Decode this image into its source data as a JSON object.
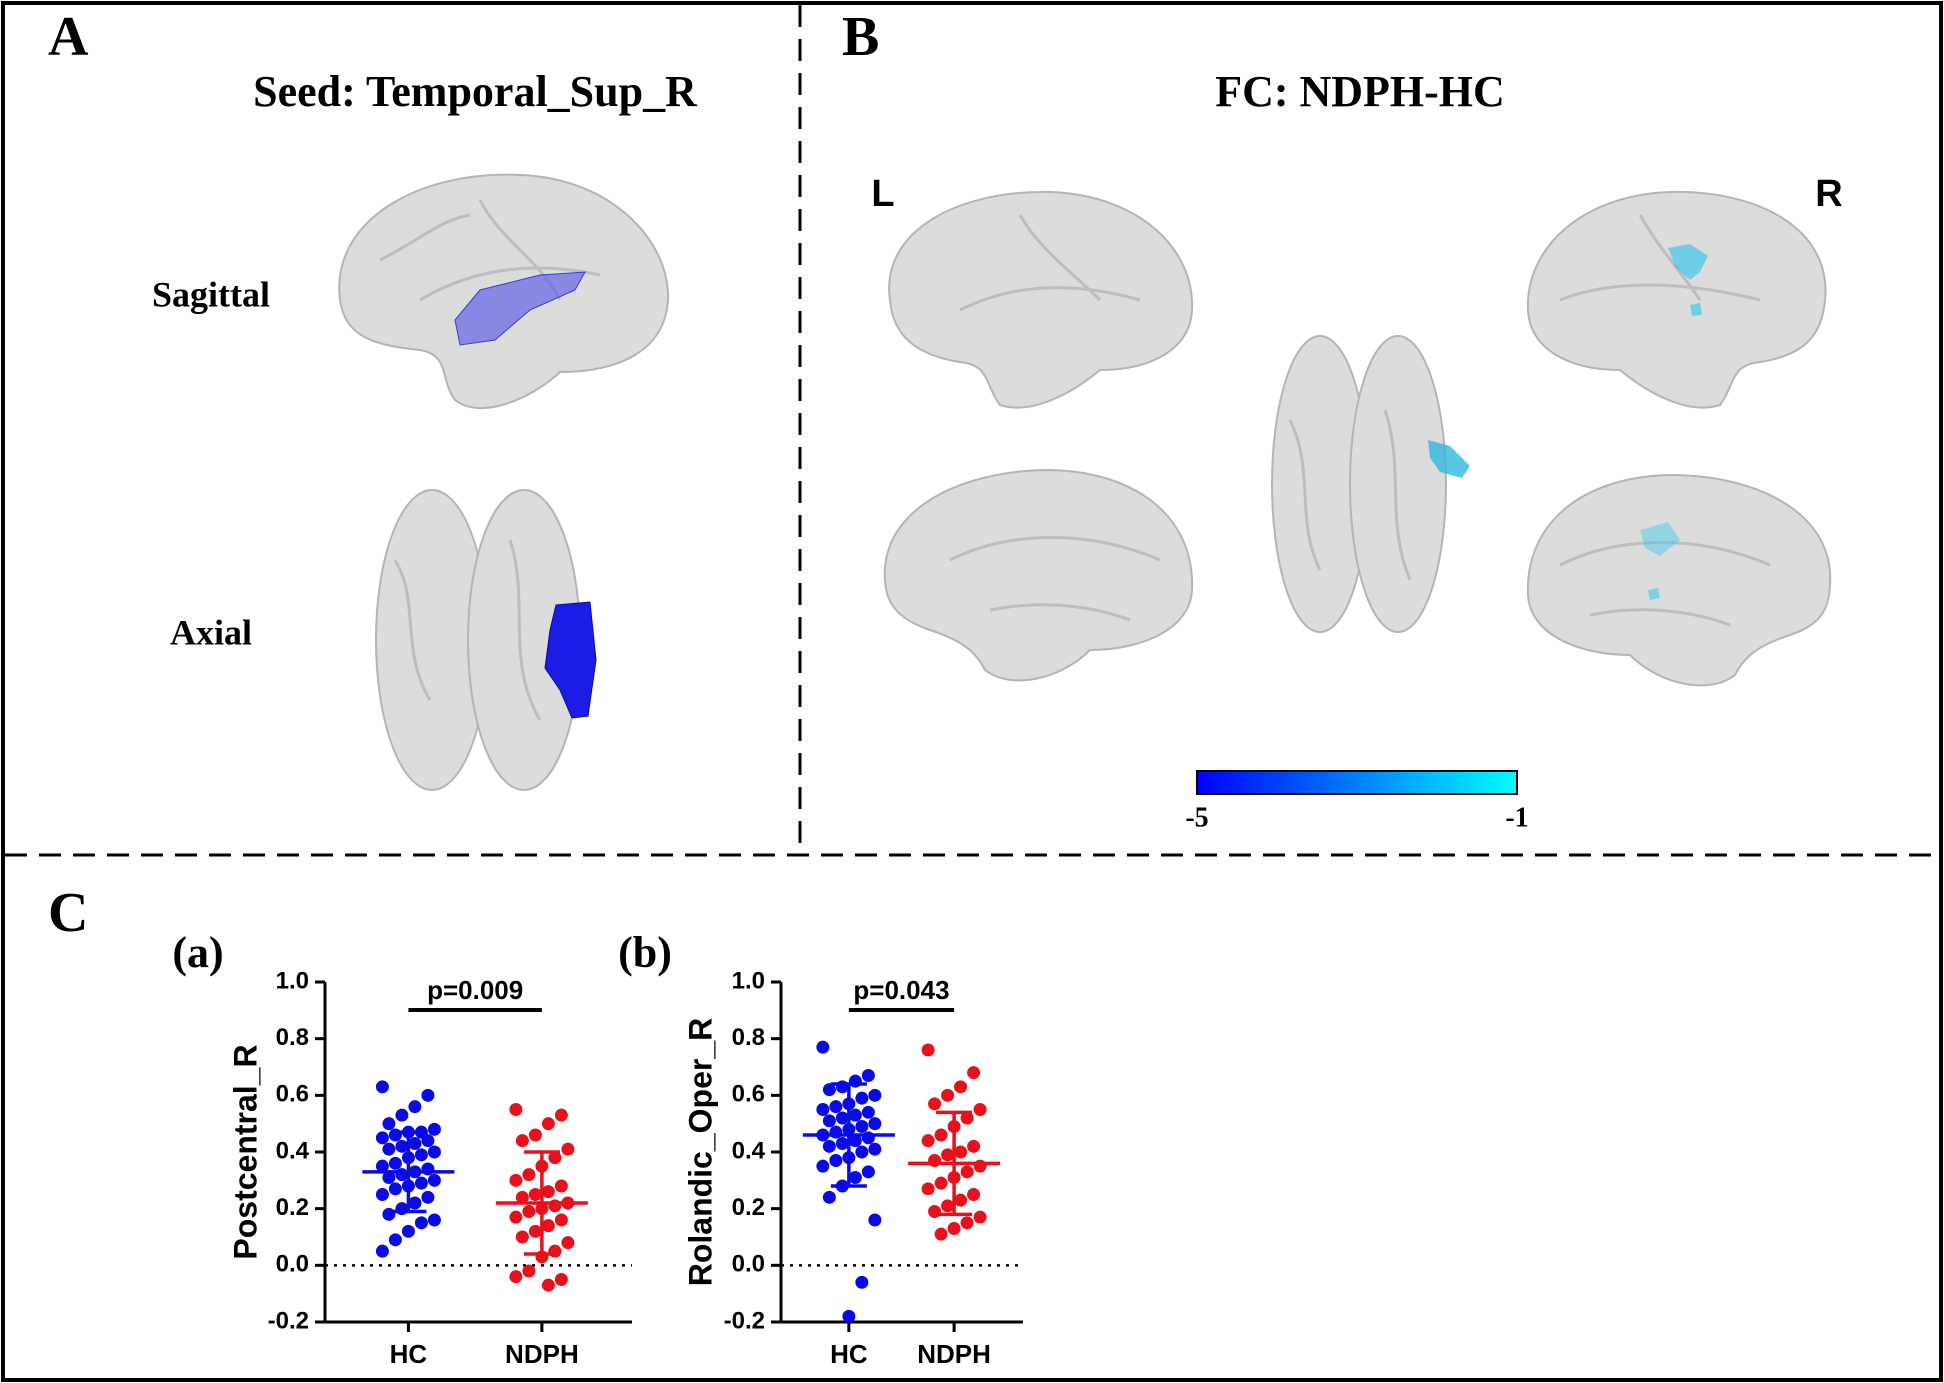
{
  "panel_labels": [
    "A",
    "B",
    "C"
  ],
  "panel_a": {
    "title": "Seed: Temporal_Sup_R",
    "views": [
      "Sagittal",
      "Axial"
    ]
  },
  "panel_b": {
    "title": "FC: NDPH-HC",
    "sides": [
      "L",
      "R"
    ],
    "colorbar": {
      "range": [
        -5,
        -1
      ],
      "colors": [
        "#0000ff",
        "#00ffff"
      ]
    }
  },
  "chart_data": [
    {
      "type": "scatter",
      "label": "(a)",
      "ylabel": "Postcentral_R",
      "annotation": "p=0.009",
      "categories": [
        "HC",
        "NDPH"
      ],
      "series": [
        {
          "color": "#0a0ae6",
          "mean": 0.33,
          "sd": 0.14,
          "values": [
            0.63,
            0.6,
            0.56,
            0.53,
            0.5,
            0.48,
            0.47,
            0.47,
            0.46,
            0.45,
            0.44,
            0.43,
            0.42,
            0.41,
            0.4,
            0.39,
            0.38,
            0.36,
            0.35,
            0.34,
            0.33,
            0.32,
            0.31,
            0.3,
            0.29,
            0.28,
            0.27,
            0.25,
            0.24,
            0.22,
            0.2,
            0.18,
            0.16,
            0.15,
            0.12,
            0.09,
            0.05
          ]
        },
        {
          "color": "#e8101a",
          "mean": 0.22,
          "sd": 0.18,
          "values": [
            0.55,
            0.53,
            0.5,
            0.46,
            0.44,
            0.41,
            0.38,
            0.35,
            0.32,
            0.3,
            0.28,
            0.26,
            0.25,
            0.24,
            0.22,
            0.21,
            0.2,
            0.19,
            0.17,
            0.16,
            0.14,
            0.12,
            0.1,
            0.08,
            0.05,
            0.03,
            -0.02,
            -0.04,
            -0.05,
            -0.07
          ]
        }
      ],
      "ylim": [
        -0.2,
        1.0
      ],
      "yticks": [
        -0.2,
        {
          "value": 0,
          "label": "0.0"
        },
        0.2,
        0.4,
        0.6,
        0.8,
        {
          "value": 1,
          "label": "1.0"
        }
      ],
      "reference_line": 0
    },
    {
      "type": "scatter",
      "label": "(b)",
      "ylabel": "Rolandic_Oper_R",
      "annotation": "p=0.043",
      "categories": [
        "HC",
        "NDPH"
      ],
      "series": [
        {
          "color": "#0a0ae6",
          "mean": 0.46,
          "sd": 0.18,
          "values": [
            0.77,
            0.67,
            0.65,
            0.63,
            0.62,
            0.6,
            0.59,
            0.57,
            0.56,
            0.55,
            0.54,
            0.53,
            0.52,
            0.51,
            0.5,
            0.49,
            0.48,
            0.47,
            0.46,
            0.45,
            0.44,
            0.43,
            0.42,
            0.41,
            0.4,
            0.38,
            0.37,
            0.35,
            0.33,
            0.31,
            0.28,
            0.24,
            0.16,
            -0.06,
            -0.18
          ]
        },
        {
          "color": "#e8101a",
          "mean": 0.36,
          "sd": 0.18,
          "values": [
            0.76,
            0.68,
            0.63,
            0.6,
            0.57,
            0.55,
            0.52,
            0.49,
            0.46,
            0.44,
            0.42,
            0.4,
            0.39,
            0.37,
            0.35,
            0.33,
            0.31,
            0.29,
            0.27,
            0.25,
            0.23,
            0.21,
            0.19,
            0.17,
            0.15,
            0.13,
            0.11
          ]
        }
      ],
      "ylim": [
        -0.2,
        1.0
      ],
      "yticks": [
        -0.2,
        {
          "value": 0,
          "label": "0.0"
        },
        0.2,
        0.4,
        0.6,
        0.8,
        {
          "value": 1,
          "label": "1.0"
        }
      ],
      "reference_line": 0
    }
  ]
}
